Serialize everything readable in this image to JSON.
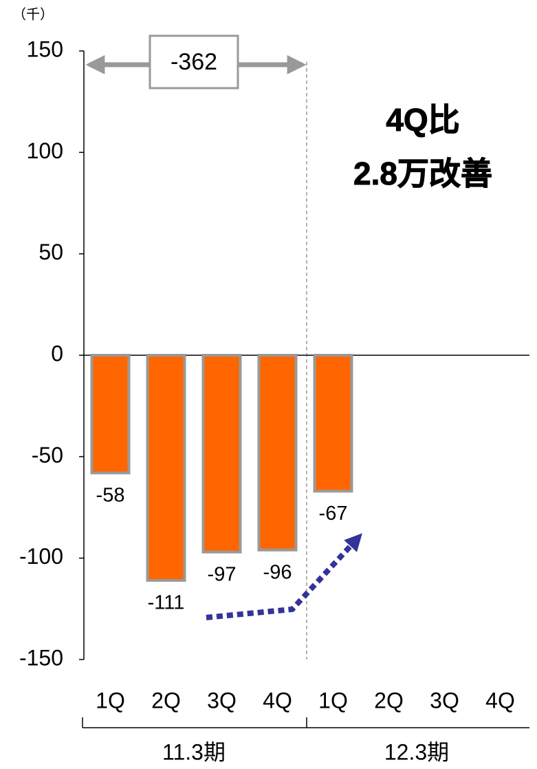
{
  "chart_data": {
    "type": "bar",
    "unit": "（千）",
    "categories": [
      "1Q",
      "2Q",
      "3Q",
      "4Q",
      "1Q",
      "2Q",
      "3Q",
      "4Q"
    ],
    "values": [
      -58,
      -111,
      -97,
      -96,
      -67,
      null,
      null,
      null
    ],
    "groups": [
      "11.3期",
      "12.3期"
    ],
    "color": "#ff6600",
    "edge_color": "#999999",
    "ylim": [
      -150,
      150
    ],
    "yticks": [
      -150,
      -100,
      -50,
      0,
      50,
      100,
      150
    ],
    "span_total": -362,
    "annotation": [
      "4Q比",
      "2.8万改善"
    ]
  }
}
